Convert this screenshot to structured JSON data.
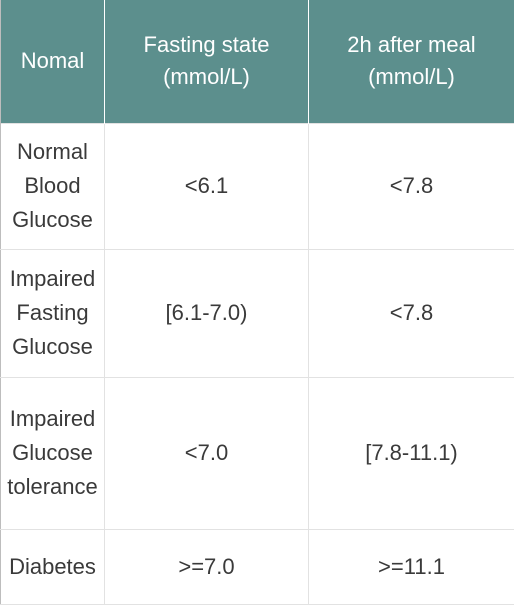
{
  "table": {
    "headers": [
      "Nomal",
      "Fasting state\n(mmol/L)",
      "2h after meal\n(mmol/L)"
    ],
    "rows": [
      {
        "label": "Normal\nBlood\nGlucose",
        "fasting": "<6.1",
        "after_meal": "<7.8"
      },
      {
        "label": "Impaired\nFasting\nGlucose",
        "fasting": "[6.1-7.0)",
        "after_meal": "<7.8"
      },
      {
        "label": "Impaired\nGlucose\ntolerance",
        "fasting": "<7.0",
        "after_meal": "[7.8-11.1)"
      },
      {
        "label": "Diabetes",
        "fasting": ">=7.0",
        "after_meal": ">=11.1"
      }
    ]
  },
  "colors": {
    "header_background": "#5c8f8d",
    "header_text": "#ffffff",
    "body_text": "#3a3a3a",
    "grid_line": "#e2e2e2"
  }
}
